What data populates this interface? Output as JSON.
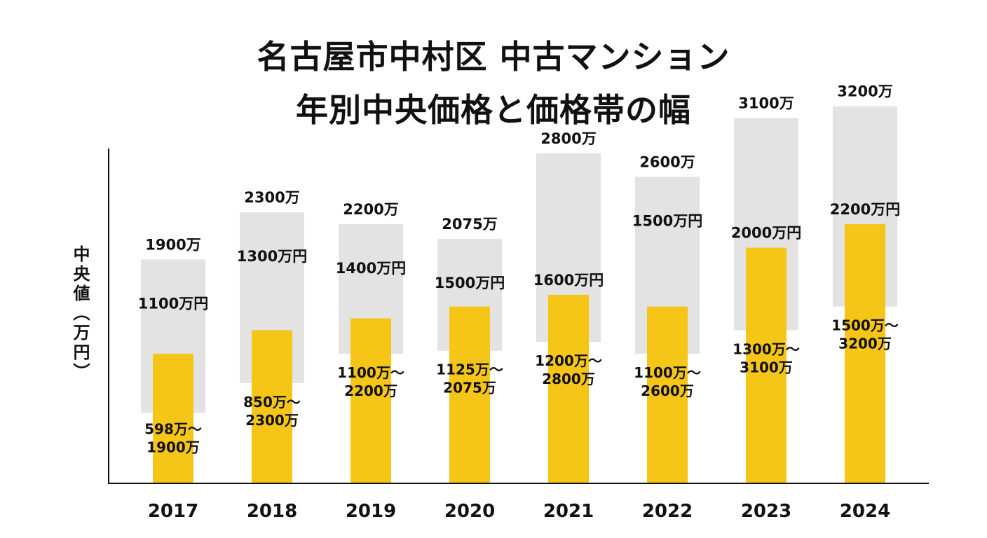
{
  "title_line1": "名古屋市中村区 中古マンション",
  "title_line2": "年別中央価格と価格帯の幅",
  "chart_data": {
    "type": "bar",
    "ylabel": "中央値（万円）",
    "ylim": [
      0,
      3400
    ],
    "grid": false,
    "colors": {
      "range": "#e3e3e3",
      "median": "#f5c518"
    },
    "categories": [
      "2017",
      "2018",
      "2019",
      "2020",
      "2021",
      "2022",
      "2023",
      "2024"
    ],
    "series": [
      {
        "values": [
          598,
          850,
          1100,
          1125,
          1200,
          1100,
          1300,
          1500
        ]
      },
      {
        "values": [
          1900,
          2300,
          2200,
          2075,
          2800,
          2600,
          3100,
          3200
        ]
      },
      {
        "values": [
          1100,
          1300,
          1400,
          1500,
          1600,
          1500,
          2000,
          2200
        ]
      }
    ],
    "labels": {
      "max": [
        "1900万",
        "2300万",
        "2200万",
        "2075万",
        "2800万",
        "2600万",
        "3100万",
        "3200万"
      ],
      "median": [
        "1100万円",
        "1300万円",
        "1400万円",
        "1500万円",
        "1600万円",
        "1500万円",
        "2000万円",
        "2200万円"
      ],
      "range_low": [
        "598万～",
        "850万～",
        "1100万～",
        "1125万～",
        "1200万～",
        "1100万～",
        "1300万～",
        "1500万～"
      ],
      "range_high": [
        "1900万",
        "2300万",
        "2200万",
        "2075万",
        "2800万",
        "2600万",
        "3100万",
        "3200万"
      ]
    }
  }
}
